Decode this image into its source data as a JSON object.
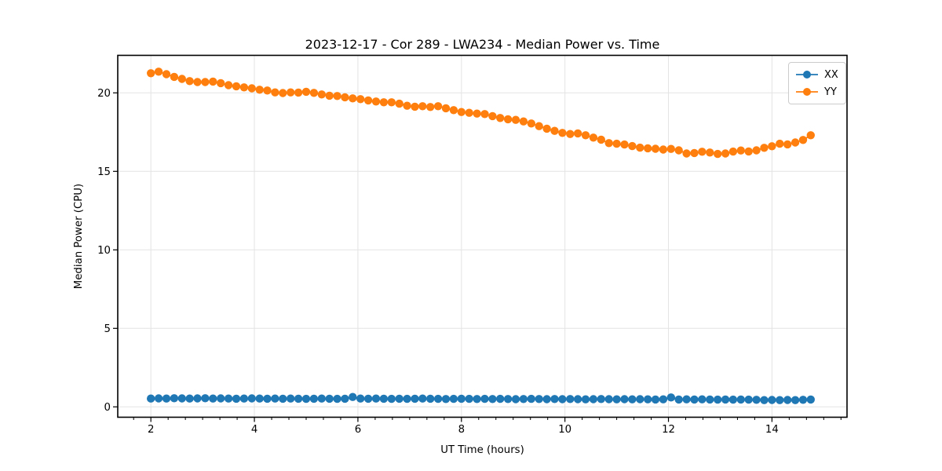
{
  "chart_data": {
    "type": "line",
    "title": "2023-12-17 - Cor 289 - LWA234 - Median Power vs. Time",
    "xlabel": "UT Time (hours)",
    "ylabel": "Median Power (CPU)",
    "xlim": [
      1.36,
      15.45
    ],
    "ylim": [
      -0.66,
      22.39
    ],
    "x_ticks": [
      2,
      4,
      6,
      8,
      10,
      12,
      14
    ],
    "y_ticks": [
      0,
      5,
      10,
      15,
      20
    ],
    "x_minor_step": 0.3333333,
    "grid": true,
    "legend_position": "upper right",
    "x_start": 2.0,
    "x_step": 0.15,
    "series": [
      {
        "name": "XX",
        "color": "#1f77b4",
        "values": [
          0.53,
          0.54,
          0.53,
          0.55,
          0.54,
          0.53,
          0.54,
          0.55,
          0.53,
          0.54,
          0.53,
          0.52,
          0.53,
          0.54,
          0.53,
          0.52,
          0.53,
          0.52,
          0.53,
          0.52,
          0.51,
          0.52,
          0.53,
          0.52,
          0.51,
          0.52,
          0.63,
          0.53,
          0.52,
          0.53,
          0.52,
          0.51,
          0.52,
          0.51,
          0.52,
          0.53,
          0.52,
          0.51,
          0.5,
          0.51,
          0.52,
          0.51,
          0.5,
          0.51,
          0.5,
          0.51,
          0.5,
          0.49,
          0.5,
          0.51,
          0.5,
          0.49,
          0.5,
          0.49,
          0.5,
          0.49,
          0.48,
          0.49,
          0.5,
          0.49,
          0.48,
          0.49,
          0.48,
          0.49,
          0.48,
          0.47,
          0.48,
          0.6,
          0.47,
          0.48,
          0.47,
          0.48,
          0.47,
          0.46,
          0.47,
          0.46,
          0.47,
          0.46,
          0.45,
          0.43,
          0.44,
          0.43,
          0.44,
          0.43,
          0.45,
          0.47
        ]
      },
      {
        "name": "YY",
        "color": "#ff7f0e",
        "values": [
          21.25,
          21.35,
          21.19,
          21.02,
          20.89,
          20.75,
          20.69,
          20.69,
          20.72,
          20.62,
          20.49,
          20.42,
          20.35,
          20.29,
          20.2,
          20.15,
          20.03,
          19.99,
          20.03,
          20.02,
          20.07,
          20.0,
          19.9,
          19.82,
          19.8,
          19.72,
          19.65,
          19.6,
          19.52,
          19.45,
          19.4,
          19.4,
          19.31,
          19.18,
          19.12,
          19.15,
          19.1,
          19.15,
          19.02,
          18.9,
          18.78,
          18.73,
          18.68,
          18.65,
          18.52,
          18.4,
          18.32,
          18.28,
          18.18,
          18.05,
          17.88,
          17.72,
          17.58,
          17.45,
          17.38,
          17.42,
          17.3,
          17.15,
          17.02,
          16.8,
          16.76,
          16.71,
          16.61,
          16.51,
          16.47,
          16.44,
          16.39,
          16.43,
          16.34,
          16.14,
          16.17,
          16.25,
          16.2,
          16.11,
          16.14,
          16.26,
          16.33,
          16.27,
          16.34,
          16.5,
          16.6,
          16.76,
          16.72,
          16.84,
          17.0,
          17.3
        ]
      }
    ],
    "colors": {
      "grid": "#e3e3e3",
      "spine": "#000000",
      "text": "#000000",
      "legend_border": "#cccccc"
    }
  }
}
